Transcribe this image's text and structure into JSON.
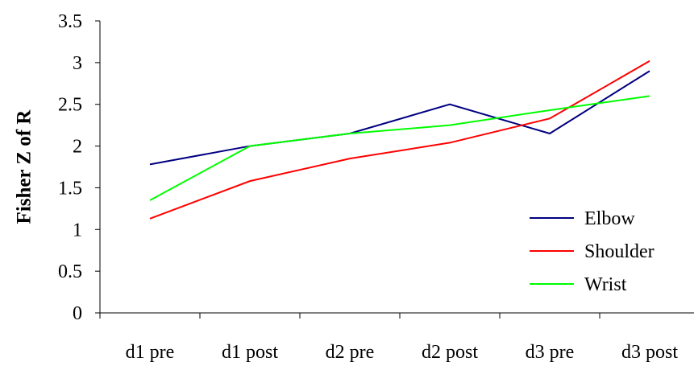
{
  "chart_data": {
    "type": "line",
    "title": "",
    "xlabel": "",
    "ylabel": "Fisher Z of R",
    "categories": [
      "d1 pre",
      "d1 post",
      "d2 pre",
      "d2 post",
      "d3 pre",
      "d3 post"
    ],
    "ylim": [
      0,
      3.5
    ],
    "yticks": [
      "0",
      "0.5",
      "1",
      "1.5",
      "2",
      "2.5",
      "3",
      "3.5"
    ],
    "grid": false,
    "legend_position": "bottom-right",
    "series": [
      {
        "name": "Elbow",
        "color": "#000080",
        "values": [
          1.78,
          2.0,
          2.15,
          2.5,
          2.15,
          2.9
        ]
      },
      {
        "name": "Shoulder",
        "color": "#ff0000",
        "values": [
          1.13,
          1.58,
          1.85,
          2.04,
          2.33,
          3.02
        ]
      },
      {
        "name": "Wrist",
        "color": "#00ff00",
        "values": [
          1.35,
          2.0,
          2.15,
          2.25,
          2.43,
          2.6
        ]
      }
    ]
  }
}
